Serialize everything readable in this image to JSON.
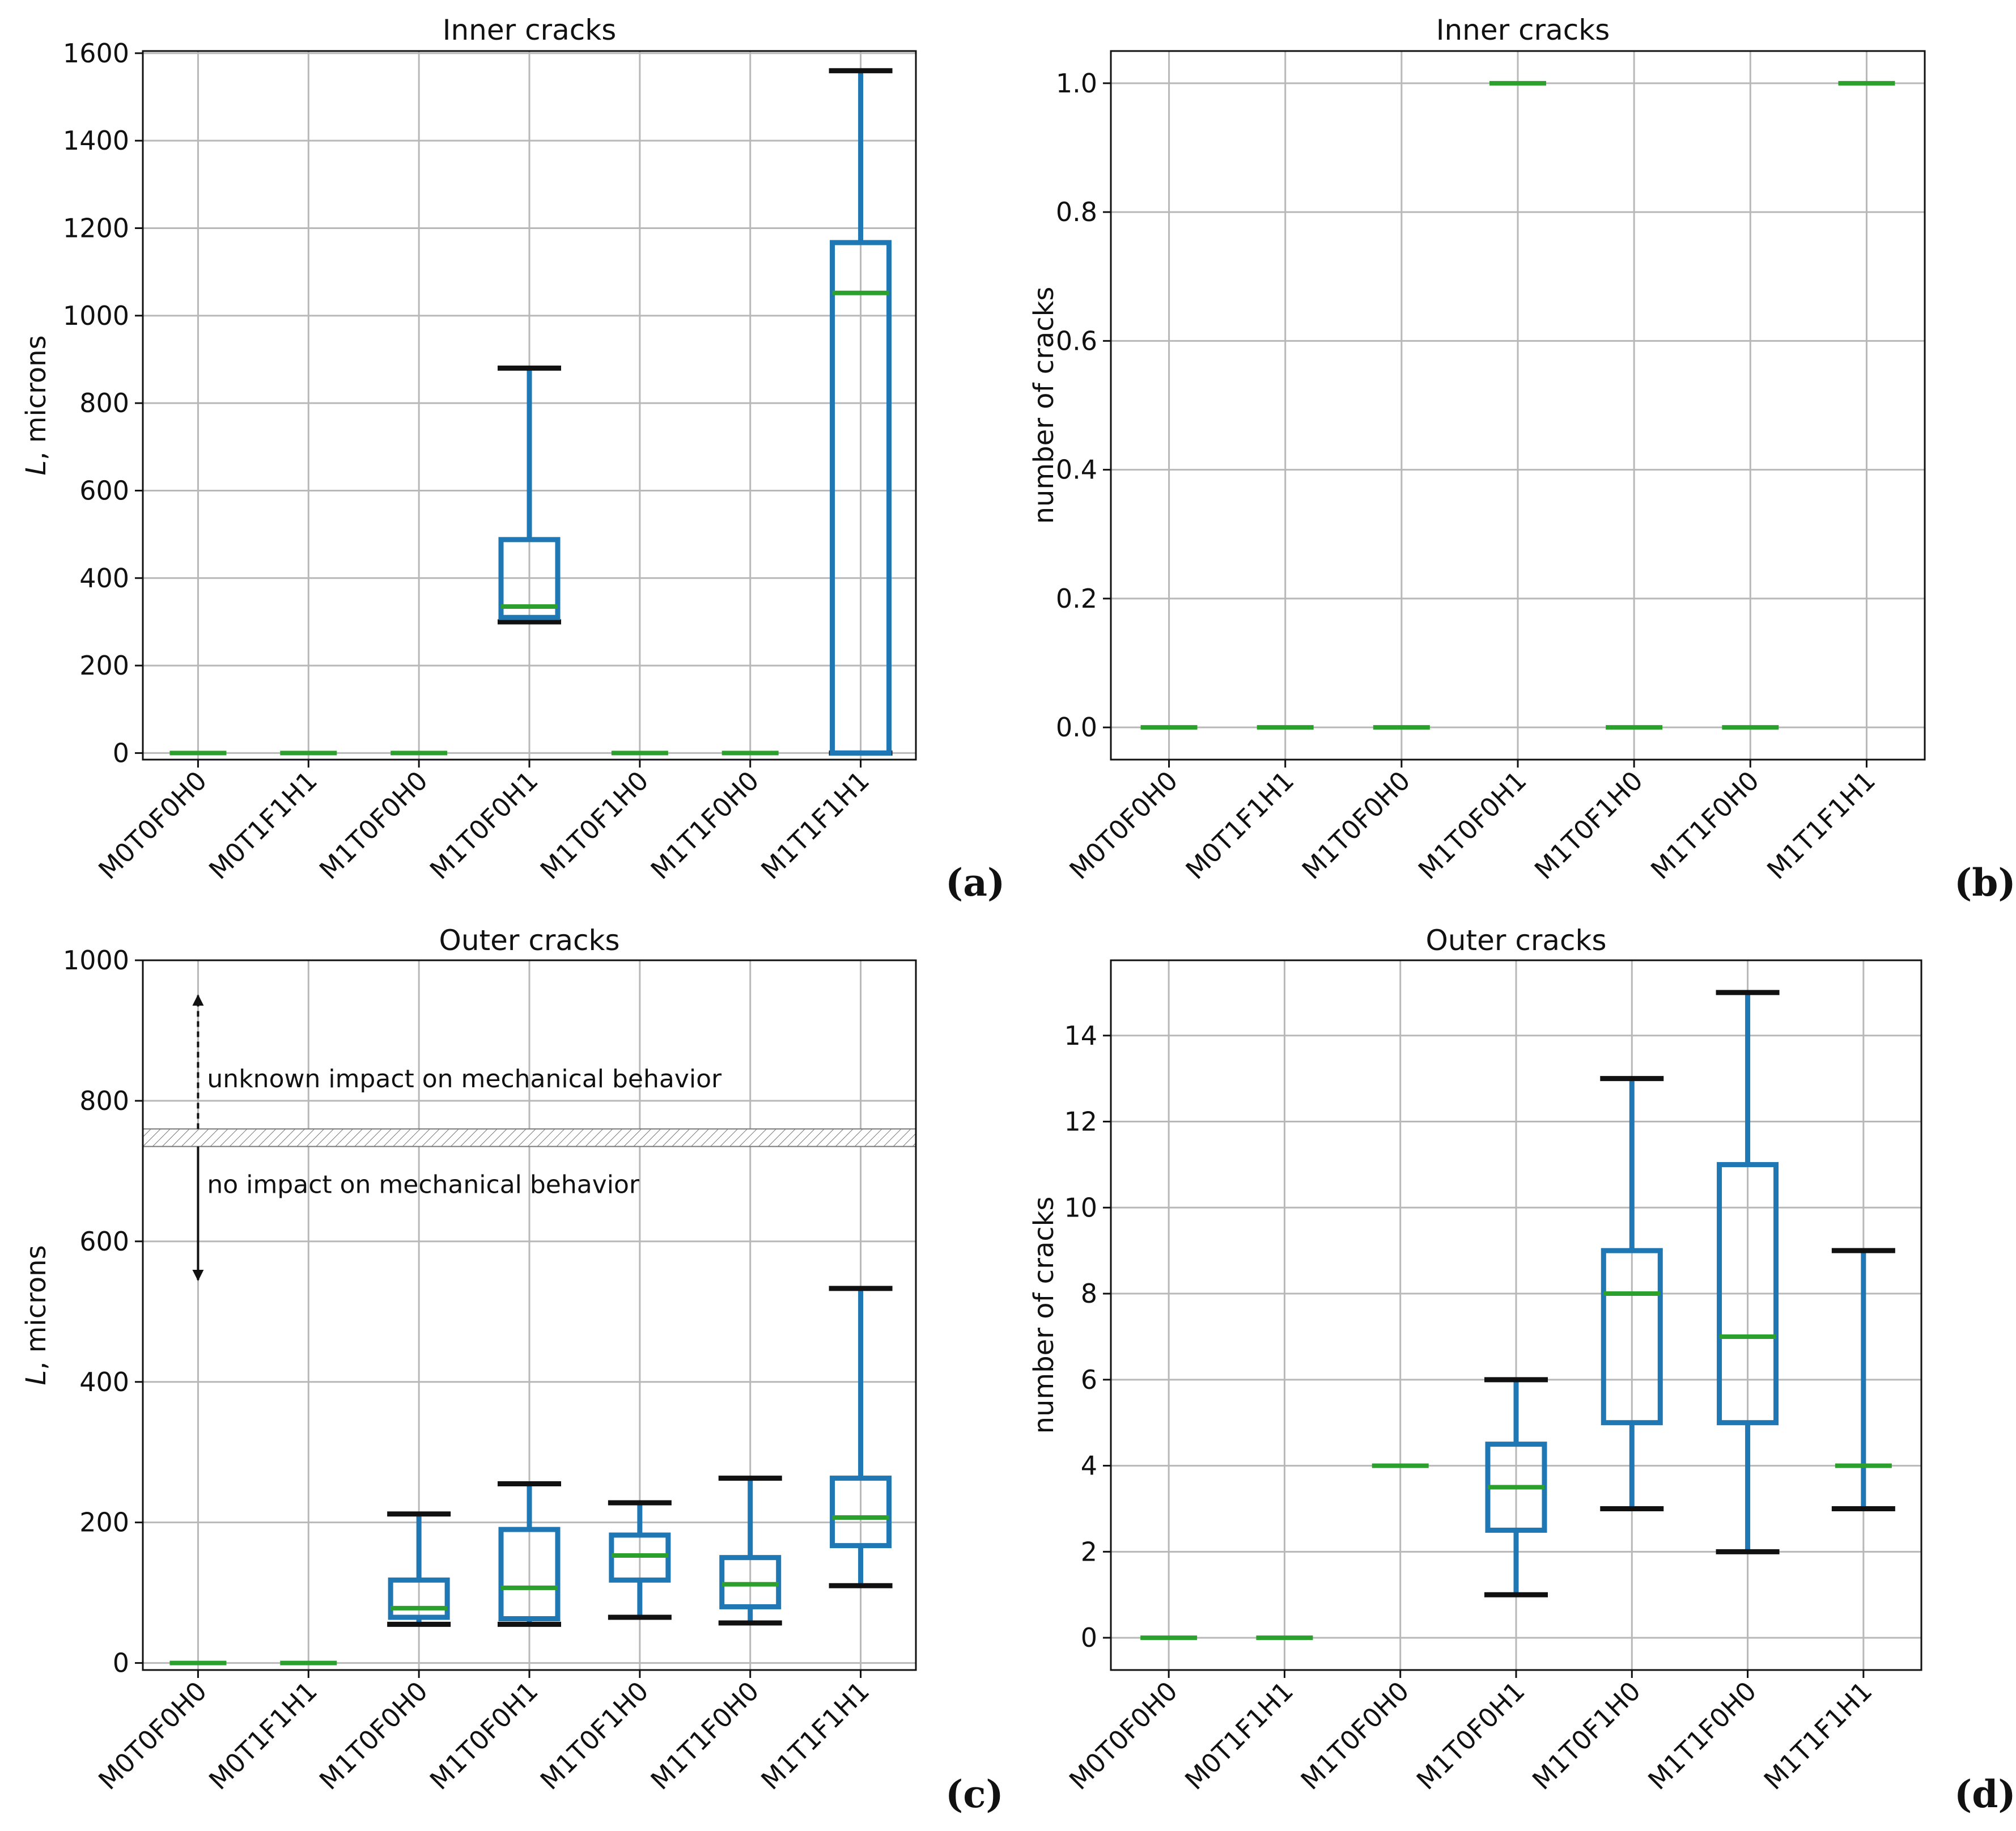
{
  "chart_data": [
    {
      "id": "a",
      "type": "box",
      "panel_tag": "(a)",
      "title": "Inner cracks",
      "ylabel_italic": "L",
      "ylabel_rest": ", microns",
      "xlabel": "",
      "categories": [
        "M0T0F0H0",
        "M0T1F1H1",
        "M1T0F0H0",
        "M1T0F0H1",
        "M1T0F1H0",
        "M1T1F0H0",
        "M1T1F1H1"
      ],
      "ylim": [
        -15,
        1605
      ],
      "yticks": [
        0,
        200,
        400,
        600,
        800,
        1000,
        1200,
        1400,
        1600
      ],
      "boxes": [
        {
          "min": 0,
          "q1": 0,
          "median": 0,
          "q3": 0,
          "max": 0
        },
        {
          "min": 0,
          "q1": 0,
          "median": 0,
          "q3": 0,
          "max": 0
        },
        {
          "min": 0,
          "q1": 0,
          "median": 0,
          "q3": 0,
          "max": 0
        },
        {
          "min": 300,
          "q1": 310,
          "median": 335,
          "q3": 488,
          "max": 880
        },
        {
          "min": 0,
          "q1": 0,
          "median": 0,
          "q3": 0,
          "max": 0
        },
        {
          "min": 0,
          "q1": 0,
          "median": 0,
          "q3": 0,
          "max": 0
        },
        {
          "min": 0,
          "q1": 0,
          "median": 1052,
          "q3": 1167,
          "max": 1560
        }
      ]
    },
    {
      "id": "b",
      "type": "box",
      "panel_tag": "(b)",
      "title": "Inner cracks",
      "ylabel": "number of cracks",
      "xlabel": "",
      "categories": [
        "M0T0F0H0",
        "M0T1F1H1",
        "M1T0F0H0",
        "M1T0F0H1",
        "M1T0F1H0",
        "M1T1F0H0",
        "M1T1F1H1"
      ],
      "ylim": [
        -0.05,
        1.05
      ],
      "yticks": [
        0.0,
        0.2,
        0.4,
        0.6,
        0.8,
        1.0
      ],
      "yticklabels": [
        "0.0",
        "0.2",
        "0.4",
        "0.6",
        "0.8",
        "1.0"
      ],
      "boxes": [
        {
          "min": 0,
          "q1": 0,
          "median": 0,
          "q3": 0,
          "max": 0
        },
        {
          "min": 0,
          "q1": 0,
          "median": 0,
          "q3": 0,
          "max": 0
        },
        {
          "min": 0,
          "q1": 0,
          "median": 0,
          "q3": 0,
          "max": 0
        },
        {
          "min": 1,
          "q1": 1,
          "median": 1,
          "q3": 1,
          "max": 1
        },
        {
          "min": 0,
          "q1": 0,
          "median": 0,
          "q3": 0,
          "max": 0
        },
        {
          "min": 0,
          "q1": 0,
          "median": 0,
          "q3": 0,
          "max": 0
        },
        {
          "min": 1,
          "q1": 1,
          "median": 1,
          "q3": 1,
          "max": 1
        }
      ]
    },
    {
      "id": "c",
      "type": "box",
      "panel_tag": "(c)",
      "title": "Outer cracks",
      "ylabel_italic": "L",
      "ylabel_rest": ", microns",
      "xlabel": "",
      "categories": [
        "M0T0F0H0",
        "M0T1F1H1",
        "M1T0F0H0",
        "M1T0F0H1",
        "M1T0F1H0",
        "M1T1F0H0",
        "M1T1F1H1"
      ],
      "ylim": [
        -10,
        1000
      ],
      "yticks": [
        0,
        200,
        400,
        600,
        800,
        1000
      ],
      "boxes": [
        {
          "min": 0,
          "q1": 0,
          "median": 0,
          "q3": 0,
          "max": 0
        },
        {
          "min": 0,
          "q1": 0,
          "median": 0,
          "q3": 0,
          "max": 0
        },
        {
          "min": 55,
          "q1": 65,
          "median": 78,
          "q3": 118,
          "max": 212
        },
        {
          "min": 55,
          "q1": 63,
          "median": 107,
          "q3": 190,
          "max": 255
        },
        {
          "min": 65,
          "q1": 118,
          "median": 153,
          "q3": 182,
          "max": 228
        },
        {
          "min": 57,
          "q1": 80,
          "median": 112,
          "q3": 150,
          "max": 263
        },
        {
          "min": 110,
          "q1": 167,
          "median": 207,
          "q3": 263,
          "max": 533
        }
      ],
      "threshold_band": [
        735,
        760
      ],
      "annotations": {
        "upper_text": "unknown impact on mechanical behavior",
        "lower_text": "no impact on mechanical behavior",
        "upper_arrow": {
          "from": 760,
          "to": 950
        },
        "lower_arrow": {
          "from": 735,
          "to": 545
        }
      }
    },
    {
      "id": "d",
      "type": "box",
      "panel_tag": "(d)",
      "title": "Outer cracks",
      "ylabel": "number of cracks",
      "xlabel": "",
      "categories": [
        "M0T0F0H0",
        "M0T1F1H1",
        "M1T0F0H0",
        "M1T0F0H1",
        "M1T0F1H0",
        "M1T1F0H0",
        "M1T1F1H1"
      ],
      "ylim": [
        -0.75,
        15.75
      ],
      "yticks": [
        0,
        2,
        4,
        6,
        8,
        10,
        12,
        14
      ],
      "boxes": [
        {
          "min": 0,
          "q1": 0,
          "median": 0,
          "q3": 0,
          "max": 0
        },
        {
          "min": 0,
          "q1": 0,
          "median": 0,
          "q3": 0,
          "max": 0
        },
        {
          "min": 4,
          "q1": 4,
          "median": 4,
          "q3": 4,
          "max": 4
        },
        {
          "min": 1,
          "q1": 2.5,
          "median": 3.5,
          "q3": 4.5,
          "max": 6
        },
        {
          "min": 3,
          "q1": 5,
          "median": 8,
          "q3": 9,
          "max": 13
        },
        {
          "min": 2,
          "q1": 5,
          "median": 7,
          "q3": 11,
          "max": 15
        },
        {
          "min": 3,
          "q1": 4,
          "median": 4,
          "q3": 4,
          "max": 9
        }
      ]
    }
  ],
  "colors": {
    "box": "#1f77b4",
    "median": "#2ca02c",
    "cap": "#111111",
    "grid": "#b8b8b8",
    "frame": "#111111"
  }
}
